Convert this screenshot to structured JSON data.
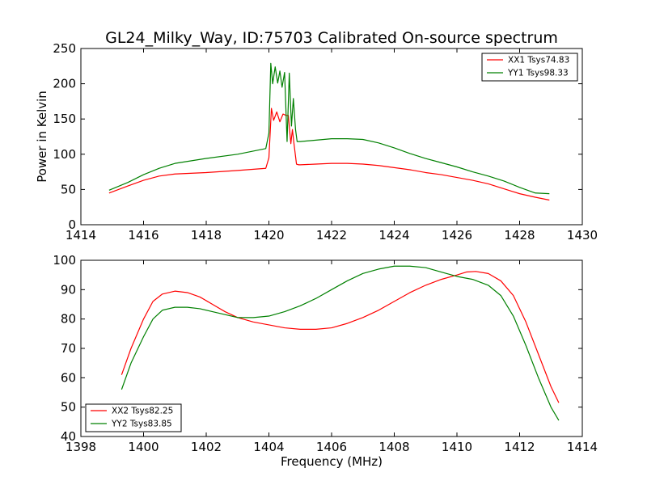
{
  "chart_data": [
    {
      "type": "line",
      "title": "GL24_Milky_Way, ID:75703 Calibrated On-source spectrum",
      "xlabel": "",
      "ylabel": "Power in Kelvin",
      "xlim": [
        1414,
        1430
      ],
      "ylim": [
        0,
        250
      ],
      "xticks": [
        1414,
        1416,
        1418,
        1420,
        1422,
        1424,
        1426,
        1428,
        1430
      ],
      "yticks": [
        0,
        50,
        100,
        150,
        200,
        250
      ],
      "legend_position": "top-right",
      "grid": false,
      "series": [
        {
          "name": "XX1 Tsys74.83",
          "color": "#ff0000",
          "x": [
            1414.9,
            1415.5,
            1416.0,
            1416.5,
            1417.0,
            1418.0,
            1419.0,
            1419.9,
            1420.0,
            1420.08,
            1420.15,
            1420.25,
            1420.35,
            1420.45,
            1420.55,
            1420.62,
            1420.7,
            1420.75,
            1420.8,
            1420.88,
            1420.95,
            1421.0,
            1421.5,
            1422.0,
            1422.5,
            1423.0,
            1423.5,
            1424.0,
            1424.5,
            1425.0,
            1425.5,
            1426.0,
            1426.5,
            1427.0,
            1427.5,
            1428.0,
            1428.5,
            1428.95
          ],
          "y": [
            45,
            55,
            63,
            69,
            72,
            74,
            77,
            80,
            95,
            165,
            148,
            160,
            146,
            157,
            155,
            155,
            115,
            135,
            115,
            86,
            85,
            85,
            86,
            87,
            87,
            86,
            84,
            81,
            78,
            74,
            71,
            67,
            63,
            58,
            51,
            44,
            39,
            35
          ]
        },
        {
          "name": "YY1 Tsys98.33",
          "color": "#008000",
          "x": [
            1414.9,
            1415.5,
            1416.0,
            1416.5,
            1417.0,
            1418.0,
            1419.0,
            1419.9,
            1420.0,
            1420.06,
            1420.12,
            1420.2,
            1420.28,
            1420.35,
            1420.42,
            1420.5,
            1420.58,
            1420.65,
            1420.72,
            1420.78,
            1420.85,
            1420.9,
            1421.0,
            1421.5,
            1422.0,
            1422.5,
            1423.0,
            1423.5,
            1424.0,
            1424.5,
            1425.0,
            1425.5,
            1426.0,
            1426.5,
            1427.0,
            1427.5,
            1428.0,
            1428.5,
            1428.95
          ],
          "y": [
            49,
            60,
            71,
            80,
            87,
            94,
            100,
            108,
            130,
            229,
            200,
            224,
            201,
            218,
            195,
            216,
            118,
            215,
            140,
            179,
            135,
            118,
            118,
            120,
            122,
            122,
            121,
            116,
            109,
            101,
            94,
            88,
            82,
            75,
            69,
            62,
            53,
            45,
            44
          ]
        }
      ]
    },
    {
      "type": "line",
      "title": "",
      "xlabel": "Frequency (MHz)",
      "ylabel": "",
      "xlim": [
        1398,
        1414
      ],
      "ylim": [
        40,
        100
      ],
      "xticks": [
        1398,
        1400,
        1402,
        1404,
        1406,
        1408,
        1410,
        1412,
        1414
      ],
      "yticks": [
        40,
        50,
        60,
        70,
        80,
        90,
        100
      ],
      "legend_position": "bottom-left",
      "grid": false,
      "series": [
        {
          "name": "XX2 Tsys82.25",
          "color": "#ff0000",
          "x": [
            1399.3,
            1399.6,
            1400.0,
            1400.3,
            1400.6,
            1401.0,
            1401.4,
            1401.8,
            1402.2,
            1402.6,
            1403.0,
            1403.5,
            1404.0,
            1404.5,
            1405.0,
            1405.5,
            1406.0,
            1406.5,
            1407.0,
            1407.5,
            1408.0,
            1408.5,
            1409.0,
            1409.5,
            1410.0,
            1410.3,
            1410.6,
            1411.0,
            1411.4,
            1411.8,
            1412.2,
            1412.6,
            1413.0,
            1413.25
          ],
          "y": [
            61,
            70,
            80,
            86,
            88.5,
            89.5,
            89,
            87.5,
            85,
            82.5,
            80.5,
            79,
            78,
            77,
            76.5,
            76.5,
            77,
            78.5,
            80.5,
            83,
            86,
            89,
            91.5,
            93.5,
            95,
            96,
            96.2,
            95.5,
            93,
            88,
            79,
            68,
            57,
            51.5
          ]
        },
        {
          "name": "YY2 Tsys83.85",
          "color": "#008000",
          "x": [
            1399.3,
            1399.6,
            1400.0,
            1400.3,
            1400.6,
            1401.0,
            1401.4,
            1401.8,
            1402.2,
            1402.6,
            1403.0,
            1403.5,
            1404.0,
            1404.5,
            1405.0,
            1405.5,
            1406.0,
            1406.5,
            1407.0,
            1407.5,
            1408.0,
            1408.5,
            1409.0,
            1409.5,
            1410.0,
            1410.5,
            1411.0,
            1411.4,
            1411.8,
            1412.2,
            1412.6,
            1413.0,
            1413.25
          ],
          "y": [
            56,
            65,
            74,
            80,
            83,
            84,
            84,
            83.5,
            82.5,
            81.5,
            80.5,
            80.5,
            81,
            82.5,
            84.5,
            87,
            90,
            93,
            95.5,
            97,
            98,
            98,
            97.5,
            96,
            94.5,
            93.5,
            91.5,
            88,
            81,
            71,
            60,
            50,
            45.5
          ]
        }
      ]
    }
  ]
}
